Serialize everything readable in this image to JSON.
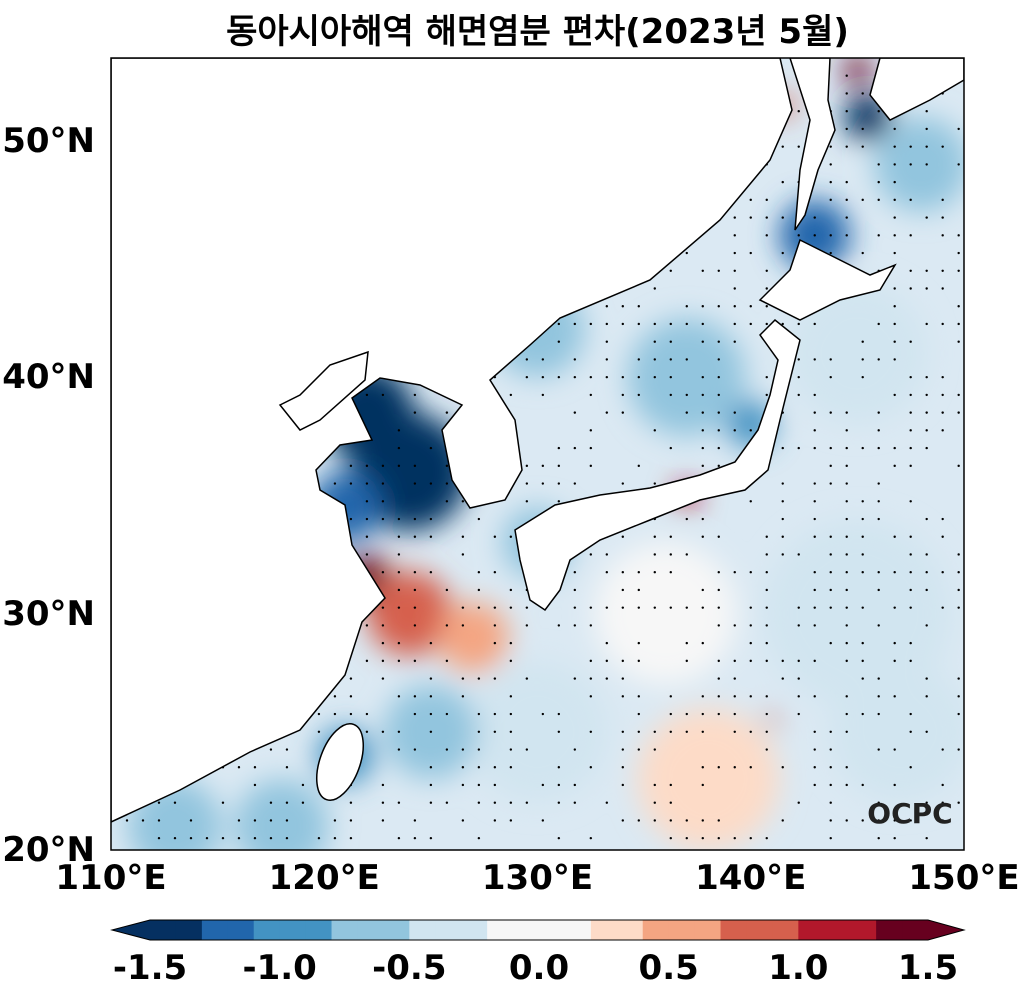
{
  "title": "동아시아해역 해면염분 편차(2023년 5월)",
  "logo": "OCPC",
  "map": {
    "lon_range": [
      110,
      150
    ],
    "lat_range": [
      20,
      53.5
    ],
    "lat_ticks": [
      "20°N",
      "30°N",
      "40°N",
      "50°N"
    ],
    "lon_ticks": [
      "110°E",
      "120°E",
      "130°E",
      "140°E",
      "150°E"
    ],
    "land_color": "#ffffff",
    "coastline_color": "#000000",
    "stipple": "significance dots"
  },
  "colorbar": {
    "colormap": "RdBu_r",
    "range": [
      -1.5,
      1.5
    ],
    "extend": "both",
    "ticks": [
      "-1.5",
      "-1.0",
      "-0.5",
      "0.0",
      "0.5",
      "1.0",
      "1.5"
    ],
    "colors": [
      "#053061",
      "#2166ac",
      "#4393c3",
      "#92c5de",
      "#d1e5f0",
      "#f7f7f7",
      "#fddbc7",
      "#f4a582",
      "#d6604d",
      "#b2182b",
      "#67001f"
    ]
  }
}
